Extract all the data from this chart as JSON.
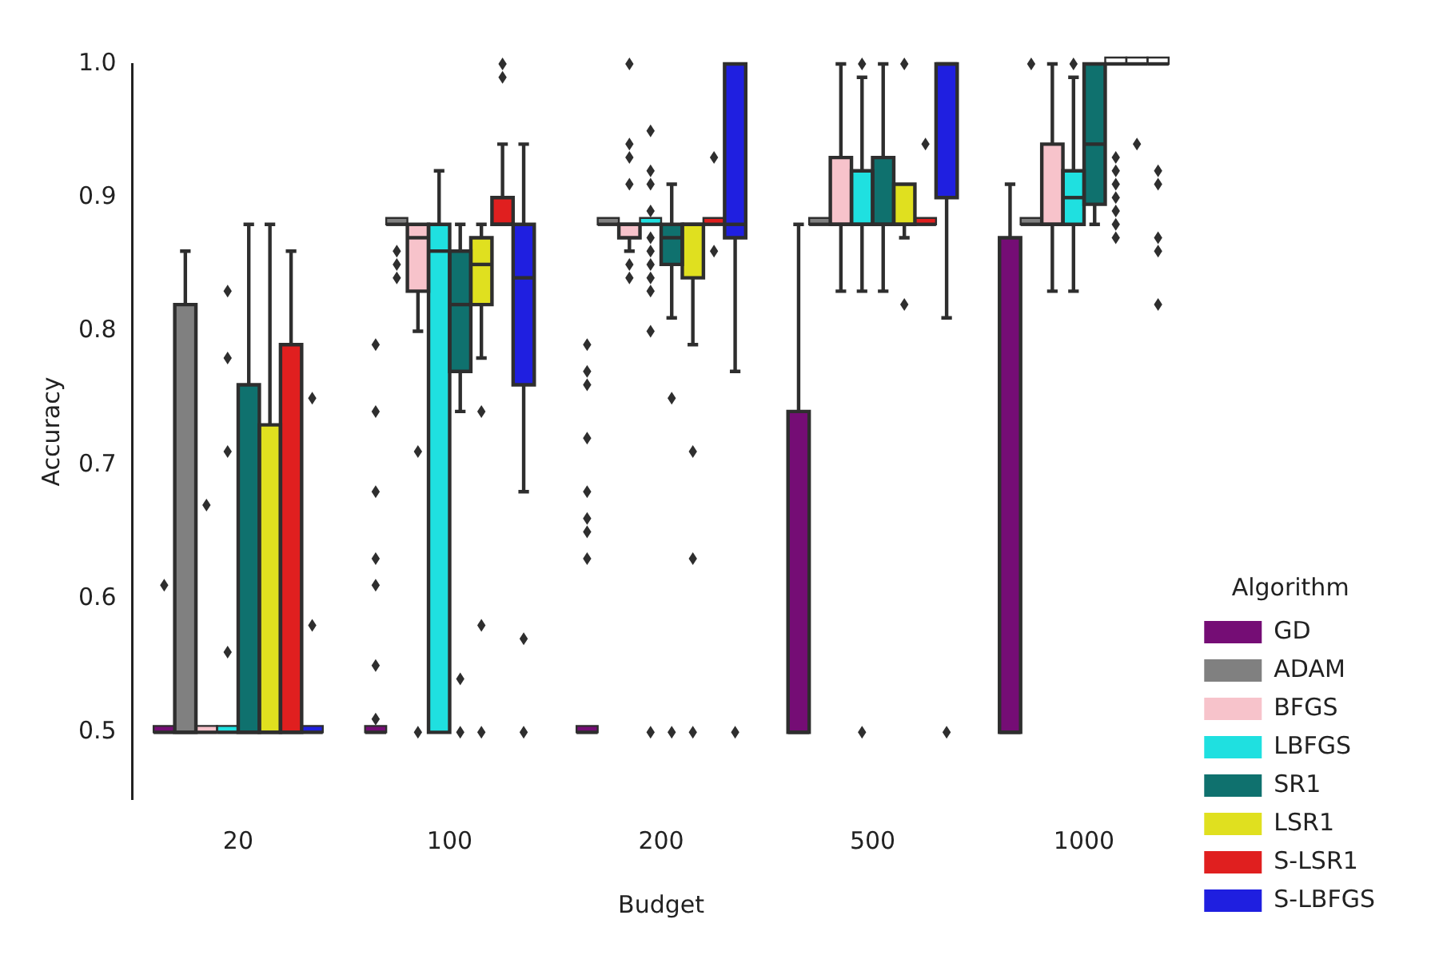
{
  "chart_data": {
    "type": "box",
    "xlabel": "Budget",
    "ylabel": "Accuracy",
    "categories": [
      "20",
      "100",
      "200",
      "500",
      "1000"
    ],
    "ylim": [
      0.45,
      1.0
    ],
    "yticks": [
      0.5,
      0.6,
      0.7,
      0.8,
      0.9,
      {
        "value": 1.0,
        "label": "1.0"
      }
    ],
    "grid": false,
    "legend": "bottom right",
    "legend_title": "Algorithm",
    "marker": "diamond",
    "series": [
      {
        "name": "GD",
        "color": "#750d75",
        "boxes": [
          {
            "low": 0.5,
            "q1": 0.5,
            "median": 0.5,
            "q3": 0.5,
            "high": 0.5,
            "outliers": [
              0.61
            ]
          },
          {
            "low": 0.5,
            "q1": 0.5,
            "median": 0.5,
            "q3": 0.5,
            "high": 0.5,
            "outliers": [
              0.79,
              0.74,
              0.68,
              0.63,
              0.61,
              0.55,
              0.51
            ]
          },
          {
            "low": 0.5,
            "q1": 0.5,
            "median": 0.5,
            "q3": 0.5,
            "high": 0.5,
            "outliers": [
              0.79,
              0.77,
              0.76,
              0.72,
              0.68,
              0.66,
              0.65,
              0.63
            ]
          },
          {
            "low": 0.5,
            "q1": 0.5,
            "median": 0.5,
            "q3": 0.74,
            "high": 0.88
          },
          {
            "low": 0.5,
            "q1": 0.5,
            "median": 0.5,
            "q3": 0.87,
            "high": 0.91
          }
        ]
      },
      {
        "name": "ADAM",
        "color": "#808080",
        "boxes": [
          {
            "low": 0.5,
            "q1": 0.5,
            "median": 0.5,
            "q3": 0.82,
            "high": 0.86
          },
          {
            "low": 0.88,
            "q1": 0.88,
            "median": 0.88,
            "q3": 0.88,
            "high": 0.88,
            "outliers": [
              0.86,
              0.85,
              0.84
            ]
          },
          {
            "low": 0.88,
            "q1": 0.88,
            "median": 0.88,
            "q3": 0.88,
            "high": 0.88
          },
          {
            "low": 0.88,
            "q1": 0.88,
            "median": 0.88,
            "q3": 0.88,
            "high": 0.88
          },
          {
            "low": 0.88,
            "q1": 0.88,
            "median": 0.88,
            "q3": 0.88,
            "high": 0.88,
            "outliers": [
              1.0
            ]
          }
        ]
      },
      {
        "name": "BFGS",
        "color": "#f7c3cb",
        "boxes": [
          {
            "low": 0.5,
            "q1": 0.5,
            "median": 0.5,
            "q3": 0.5,
            "high": 0.5,
            "outliers": [
              0.67
            ]
          },
          {
            "low": 0.8,
            "q1": 0.83,
            "median": 0.87,
            "q3": 0.88,
            "high": 0.88,
            "outliers": [
              0.71,
              0.5
            ]
          },
          {
            "low": 0.86,
            "q1": 0.87,
            "median": 0.88,
            "q3": 0.88,
            "high": 0.88,
            "outliers": [
              1.0,
              0.94,
              0.93,
              0.91,
              0.85,
              0.84
            ]
          },
          {
            "low": 0.83,
            "q1": 0.88,
            "median": 0.88,
            "q3": 0.93,
            "high": 1.0
          },
          {
            "low": 0.83,
            "q1": 0.88,
            "median": 0.88,
            "q3": 0.94,
            "high": 1.0
          }
        ]
      },
      {
        "name": "LBFGS",
        "color": "#1fe0e0",
        "boxes": [
          {
            "low": 0.5,
            "q1": 0.5,
            "median": 0.5,
            "q3": 0.5,
            "high": 0.5,
            "outliers": [
              0.83,
              0.78,
              0.71,
              0.56
            ]
          },
          {
            "low": 0.5,
            "q1": 0.5,
            "median": 0.86,
            "q3": 0.88,
            "high": 0.92
          },
          {
            "low": 0.88,
            "q1": 0.88,
            "median": 0.88,
            "q3": 0.88,
            "high": 0.88,
            "outliers": [
              0.95,
              0.92,
              0.91,
              0.89,
              0.87,
              0.86,
              0.85,
              0.84,
              0.83,
              0.8,
              0.5
            ]
          },
          {
            "low": 0.83,
            "q1": 0.88,
            "median": 0.88,
            "q3": 0.92,
            "high": 0.99,
            "outliers": [
              1.0,
              0.5
            ]
          },
          {
            "low": 0.83,
            "q1": 0.88,
            "median": 0.9,
            "q3": 0.92,
            "high": 0.99,
            "outliers": [
              1.0
            ]
          }
        ]
      },
      {
        "name": "SR1",
        "color": "#0f716e",
        "boxes": [
          {
            "low": 0.5,
            "q1": 0.5,
            "median": 0.5,
            "q3": 0.76,
            "high": 0.88
          },
          {
            "low": 0.74,
            "q1": 0.77,
            "median": 0.82,
            "q3": 0.86,
            "high": 0.88,
            "outliers": [
              0.54,
              0.5
            ]
          },
          {
            "low": 0.81,
            "q1": 0.85,
            "median": 0.87,
            "q3": 0.88,
            "high": 0.91,
            "outliers": [
              0.75,
              0.5
            ]
          },
          {
            "low": 0.83,
            "q1": 0.88,
            "median": 0.88,
            "q3": 0.93,
            "high": 1.0
          },
          {
            "low": 0.88,
            "q1": 0.895,
            "median": 0.94,
            "q3": 1.0,
            "high": 1.0
          }
        ]
      },
      {
        "name": "LSR1",
        "color": "#e0e01f",
        "boxes": [
          {
            "low": 0.5,
            "q1": 0.5,
            "median": 0.5,
            "q3": 0.73,
            "high": 0.88
          },
          {
            "low": 0.78,
            "q1": 0.82,
            "median": 0.85,
            "q3": 0.87,
            "high": 0.88,
            "outliers": [
              0.74,
              0.58,
              0.5
            ]
          },
          {
            "low": 0.79,
            "q1": 0.84,
            "median": 0.88,
            "q3": 0.88,
            "high": 0.88,
            "outliers": [
              0.71,
              0.63,
              0.5
            ]
          },
          {
            "low": 0.87,
            "q1": 0.88,
            "median": 0.88,
            "q3": 0.91,
            "high": 0.91,
            "outliers": [
              1.0,
              0.82
            ]
          },
          {
            "low": 1.0,
            "q1": 1.0,
            "median": 1.0,
            "q3": 1.0,
            "high": 1.0,
            "outliers": [
              0.93,
              0.92,
              0.91,
              0.9,
              0.89,
              0.88,
              0.87
            ]
          }
        ]
      },
      {
        "name": "S-LSR1",
        "color": "#e01f1f",
        "boxes": [
          {
            "low": 0.5,
            "q1": 0.5,
            "median": 0.5,
            "q3": 0.79,
            "high": 0.86
          },
          {
            "low": 0.88,
            "q1": 0.88,
            "median": 0.88,
            "q3": 0.9,
            "high": 0.94,
            "outliers": [
              1.0,
              0.99
            ]
          },
          {
            "low": 0.88,
            "q1": 0.88,
            "median": 0.88,
            "q3": 0.88,
            "high": 0.88,
            "outliers": [
              0.93,
              0.86
            ]
          },
          {
            "low": 0.88,
            "q1": 0.88,
            "median": 0.88,
            "q3": 0.88,
            "high": 0.88,
            "outliers": [
              0.94
            ]
          },
          {
            "low": 1.0,
            "q1": 1.0,
            "median": 1.0,
            "q3": 1.0,
            "high": 1.0,
            "outliers": [
              0.94
            ]
          }
        ]
      },
      {
        "name": "S-LBFGS",
        "color": "#1f1fe0",
        "boxes": [
          {
            "low": 0.5,
            "q1": 0.5,
            "median": 0.5,
            "q3": 0.5,
            "high": 0.5,
            "outliers": [
              0.75,
              0.58
            ]
          },
          {
            "low": 0.68,
            "q1": 0.76,
            "median": 0.84,
            "q3": 0.88,
            "high": 0.94,
            "outliers": [
              0.57,
              0.5
            ]
          },
          {
            "low": 0.77,
            "q1": 0.87,
            "median": 0.88,
            "q3": 1.0,
            "high": 1.0,
            "outliers": [
              0.5
            ]
          },
          {
            "low": 0.81,
            "q1": 0.9,
            "median": 1.0,
            "q3": 1.0,
            "high": 1.0,
            "outliers": [
              0.5
            ]
          },
          {
            "low": 1.0,
            "q1": 1.0,
            "median": 1.0,
            "q3": 1.0,
            "high": 1.0,
            "outliers": [
              0.92,
              0.91,
              0.87,
              0.86,
              0.82
            ]
          }
        ]
      }
    ]
  }
}
